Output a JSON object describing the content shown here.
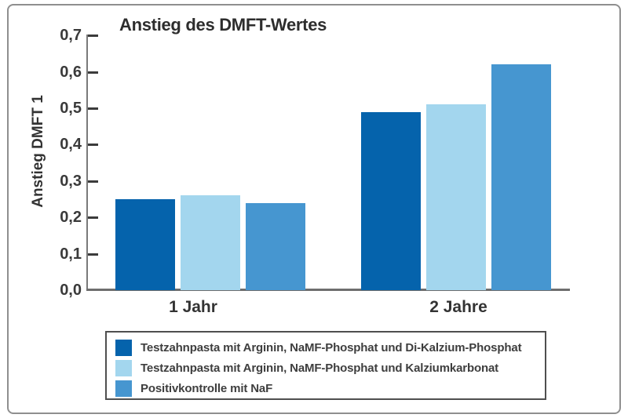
{
  "chart_data": {
    "type": "bar",
    "title": "Anstieg des DMFT-Wertes",
    "ylabel": "Anstieg DMFT 1",
    "xlabel": "",
    "categories": [
      "1 Jahr",
      "2 Jahre"
    ],
    "series": [
      {
        "name": "Testzahnpasta mit Arginin, NaMF-Phosphat und Di-Kalzium-Phosphat",
        "color": "#0563ac",
        "values": [
          0.25,
          0.49
        ]
      },
      {
        "name": "Testzahnpasta mit Arginin, NaMF-Phosphat und Kalziumkarbonat",
        "color": "#a3d6ee",
        "values": [
          0.26,
          0.51
        ]
      },
      {
        "name": "Positivkontrolle mit NaF",
        "color": "#4696d0",
        "values": [
          0.24,
          0.62
        ]
      }
    ],
    "ylim": [
      0.0,
      0.7
    ],
    "ytick_step": 0.1,
    "ytick_labels": [
      "0,0",
      "0,1",
      "0,2",
      "0,3",
      "0,4",
      "0,5",
      "0,6",
      "0,7"
    ],
    "decimal_separator": ",",
    "grid": false,
    "legend_position": "bottom"
  },
  "colors": {
    "frame_border": "#8f8f8f",
    "axis": "#6e6e6e",
    "tick": "#3b3b3b",
    "text": "#333333",
    "legend_border": "#4f4f4f",
    "background": "#ffffff"
  }
}
